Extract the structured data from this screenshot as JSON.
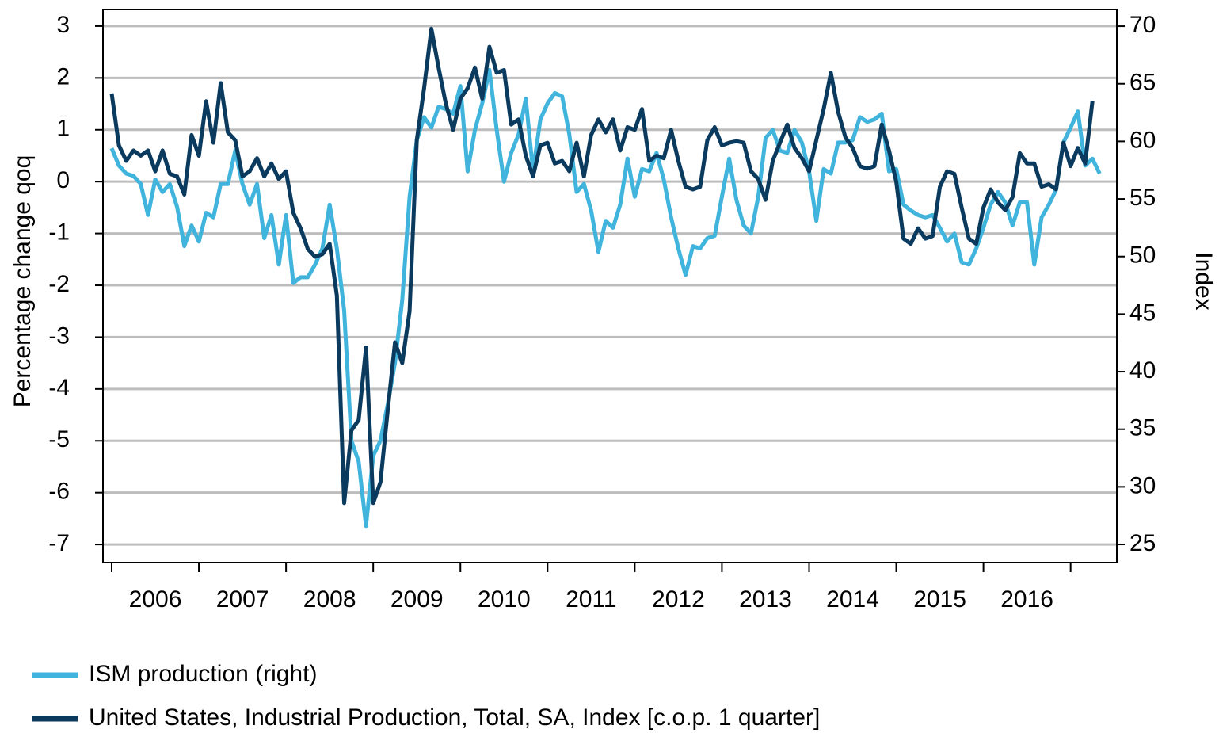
{
  "chart_data": {
    "type": "line",
    "ylabel": "Percentage change qoq",
    "y2label": "Index",
    "xlim": [
      2005.9,
      2017.53
    ],
    "xticks": [
      {
        "value": 2006,
        "label": "2006"
      },
      {
        "value": 2007,
        "label": "2007"
      },
      {
        "value": 2008,
        "label": "2008"
      },
      {
        "value": 2009,
        "label": "2009"
      },
      {
        "value": 2010,
        "label": "2010"
      },
      {
        "value": 2011,
        "label": "2011"
      },
      {
        "value": 2012,
        "label": "2012"
      },
      {
        "value": 2013,
        "label": "2013"
      },
      {
        "value": 2014,
        "label": "2014"
      },
      {
        "value": 2015,
        "label": "2015"
      },
      {
        "value": 2016,
        "label": "2016"
      },
      2017
    ],
    "ylim": [
      -7.35,
      3.32
    ],
    "yticks": [
      3,
      2,
      1,
      0,
      -1,
      -2,
      -3,
      -4,
      -5,
      -6,
      -7
    ],
    "y2lim": [
      23.42,
      71.45
    ],
    "y2ticks": [
      70,
      65,
      60,
      55,
      50,
      45,
      40,
      35,
      30,
      25
    ],
    "grid": true,
    "legend": "bottom-left",
    "x": [
      2006.0,
      2006.083,
      2006.167,
      2006.25,
      2006.333,
      2006.417,
      2006.5,
      2006.583,
      2006.667,
      2006.75,
      2006.833,
      2006.917,
      2007.0,
      2007.083,
      2007.167,
      2007.25,
      2007.333,
      2007.417,
      2007.5,
      2007.583,
      2007.667,
      2007.75,
      2007.833,
      2007.917,
      2008.0,
      2008.083,
      2008.167,
      2008.25,
      2008.333,
      2008.417,
      2008.5,
      2008.583,
      2008.667,
      2008.75,
      2008.833,
      2008.917,
      2009.0,
      2009.083,
      2009.167,
      2009.25,
      2009.333,
      2009.417,
      2009.5,
      2009.583,
      2009.667,
      2009.75,
      2009.833,
      2009.917,
      2010.0,
      2010.083,
      2010.167,
      2010.25,
      2010.333,
      2010.417,
      2010.5,
      2010.583,
      2010.667,
      2010.75,
      2010.833,
      2010.917,
      2011.0,
      2011.083,
      2011.167,
      2011.25,
      2011.333,
      2011.417,
      2011.5,
      2011.583,
      2011.667,
      2011.75,
      2011.833,
      2011.917,
      2012.0,
      2012.083,
      2012.167,
      2012.25,
      2012.333,
      2012.417,
      2012.5,
      2012.583,
      2012.667,
      2012.75,
      2012.833,
      2012.917,
      2013.0,
      2013.083,
      2013.167,
      2013.25,
      2013.333,
      2013.417,
      2013.5,
      2013.583,
      2013.667,
      2013.75,
      2013.833,
      2013.917,
      2014.0,
      2014.083,
      2014.167,
      2014.25,
      2014.333,
      2014.417,
      2014.5,
      2014.583,
      2014.667,
      2014.75,
      2014.833,
      2014.917,
      2015.0,
      2015.083,
      2015.167,
      2015.25,
      2015.333,
      2015.417,
      2015.5,
      2015.583,
      2015.667,
      2015.75,
      2015.833,
      2015.917,
      2016.0,
      2016.083,
      2016.167,
      2016.25,
      2016.333,
      2016.417,
      2016.5,
      2016.583,
      2016.667,
      2016.75,
      2016.833,
      2016.917,
      2017.0,
      2017.083,
      2017.167,
      2017.25,
      2017.333
    ],
    "series": [
      {
        "name": "ISM production (right)",
        "color": "#40b4dc",
        "axis": "y2",
        "values": [
          59.4,
          57.9,
          57.2,
          57.0,
          56.3,
          53.6,
          56.7,
          55.6,
          56.3,
          54.3,
          50.9,
          52.7,
          51.3,
          53.8,
          53.4,
          56.3,
          56.3,
          59.2,
          56.3,
          54.5,
          56.3,
          51.6,
          53.6,
          49.3,
          53.6,
          47.7,
          48.2,
          48.2,
          49.3,
          50.7,
          54.5,
          50.7,
          45.3,
          34.0,
          32.2,
          26.6,
          32.7,
          34.0,
          37.2,
          40.8,
          46.2,
          55.2,
          60.1,
          62.1,
          61.2,
          63.0,
          62.8,
          62.4,
          64.8,
          57.4,
          61.0,
          63.3,
          66.2,
          61.0,
          56.5,
          59.0,
          60.6,
          63.7,
          57.4,
          61.9,
          63.3,
          64.2,
          63.9,
          60.6,
          55.6,
          56.3,
          54.0,
          50.4,
          53.1,
          52.5,
          54.5,
          58.5,
          55.2,
          57.6,
          57.4,
          59.0,
          56.7,
          53.4,
          50.7,
          48.4,
          50.9,
          50.7,
          51.6,
          51.8,
          55.2,
          58.5,
          54.9,
          52.7,
          52.0,
          55.2,
          60.3,
          61.0,
          59.2,
          59.0,
          61.0,
          59.9,
          57.4,
          53.1,
          57.6,
          57.2,
          59.9,
          59.9,
          60.1,
          62.1,
          61.7,
          61.9,
          62.4,
          57.4,
          57.6,
          54.5,
          54.0,
          53.6,
          53.4,
          53.6,
          52.5,
          51.3,
          52.0,
          49.5,
          49.3,
          50.7,
          52.5,
          54.5,
          55.6,
          54.7,
          52.7,
          54.7,
          54.7,
          49.3,
          53.4,
          54.5,
          55.8,
          59.9,
          61.2,
          62.6,
          57.9,
          58.5,
          57.2
        ]
      },
      {
        "name": "United States, Industrial Production, Total, SA, Index [c.o.p. 1 quarter]",
        "color": "#0b3a5f",
        "values": [
          1.7,
          0.7,
          0.4,
          0.6,
          0.5,
          0.6,
          0.2,
          0.6,
          0.15,
          0.1,
          -0.25,
          0.9,
          0.5,
          1.55,
          0.75,
          1.9,
          0.95,
          0.8,
          0.1,
          0.2,
          0.45,
          0.1,
          0.35,
          0.05,
          0.2,
          -0.6,
          -0.9,
          -1.3,
          -1.45,
          -1.4,
          -1.2,
          -2.2,
          -6.2,
          -4.8,
          -4.6,
          -3.2,
          -6.2,
          -5.8,
          -4.4,
          -3.1,
          -3.5,
          -2.5,
          0.8,
          1.8,
          2.95,
          2.2,
          1.5,
          1.0,
          1.6,
          1.8,
          2.2,
          1.6,
          2.6,
          2.1,
          2.15,
          1.1,
          1.2,
          0.5,
          0.1,
          0.7,
          0.75,
          0.35,
          0.4,
          0.2,
          0.75,
          0.1,
          0.9,
          1.2,
          0.95,
          1.2,
          0.6,
          1.05,
          1.0,
          1.4,
          0.4,
          0.5,
          0.45,
          1.0,
          0.4,
          -0.1,
          -0.15,
          -0.1,
          0.8,
          1.05,
          0.7,
          0.75,
          0.78,
          0.75,
          0.2,
          0.05,
          -0.35,
          0.4,
          0.75,
          1.1,
          0.65,
          0.45,
          0.2,
          0.8,
          1.4,
          2.1,
          1.35,
          0.85,
          0.65,
          0.3,
          0.25,
          0.3,
          1.1,
          0.6,
          0.0,
          -1.1,
          -1.2,
          -0.9,
          -1.1,
          -1.05,
          -0.1,
          0.2,
          0.15,
          -0.5,
          -1.1,
          -1.2,
          -0.5,
          -0.15,
          -0.4,
          -0.55,
          -0.3,
          0.55,
          0.35,
          0.35,
          -0.1,
          -0.05,
          -0.15,
          0.75,
          0.3,
          0.65,
          0.35,
          1.55,
          null
        ]
      }
    ]
  }
}
